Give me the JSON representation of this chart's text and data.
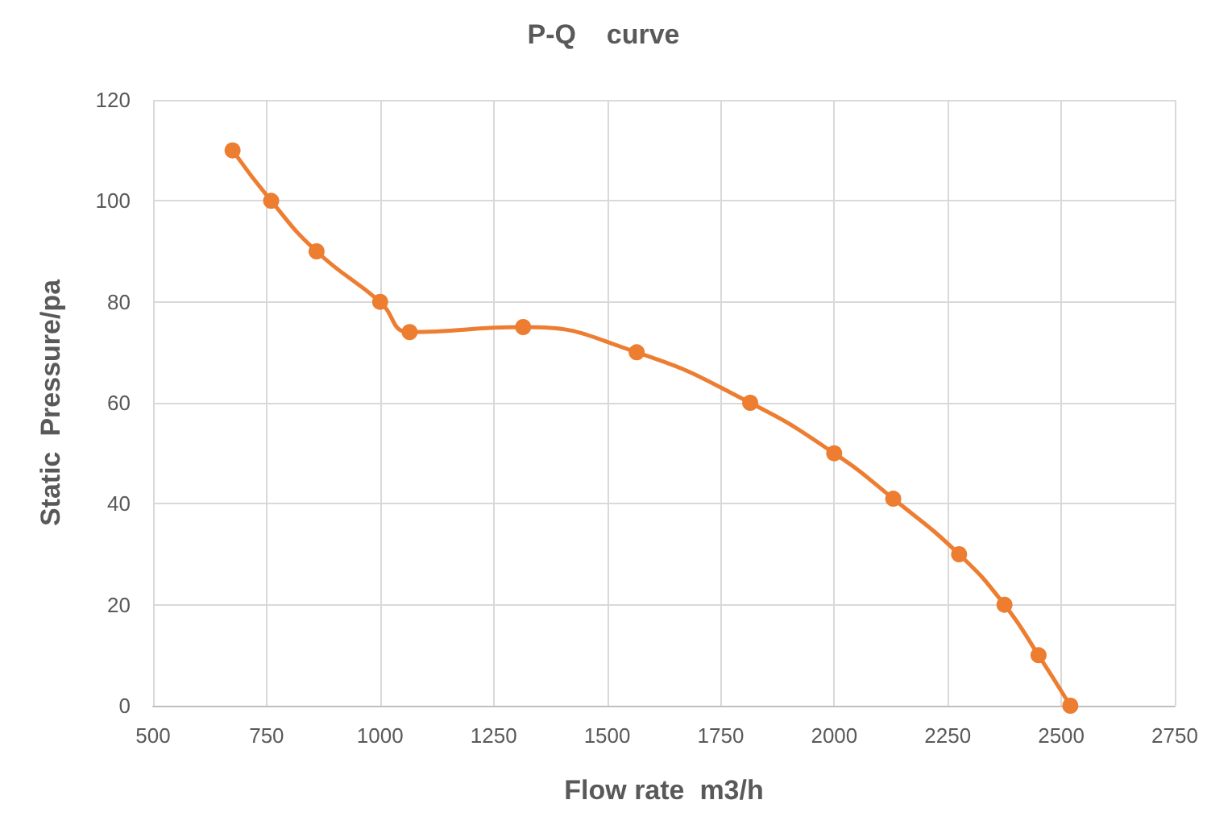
{
  "chart_data": {
    "type": "line",
    "title": "P-Q    curve",
    "xlabel": "Flow rate  m3/h",
    "ylabel": "Static  Pressure/pa",
    "x": [
      675,
      760,
      860,
      1000,
      1065,
      1315,
      1565,
      1815,
      2000,
      2130,
      2275,
      2375,
      2450,
      2520
    ],
    "series": [
      {
        "color": "#ed7d31",
        "values": [
          110,
          100,
          90,
          80,
          74,
          75,
          70,
          60,
          50,
          41,
          30,
          20,
          10,
          0
        ]
      }
    ],
    "xlim": [
      500,
      2750
    ],
    "xticks": [
      500,
      750,
      1000,
      1250,
      1500,
      1750,
      2000,
      2250,
      2500,
      2750
    ],
    "ylim": [
      0,
      120
    ],
    "yticks": [
      0,
      20,
      40,
      60,
      80,
      100,
      120
    ],
    "grid": true,
    "marker": "circle",
    "line_style": "solid"
  }
}
